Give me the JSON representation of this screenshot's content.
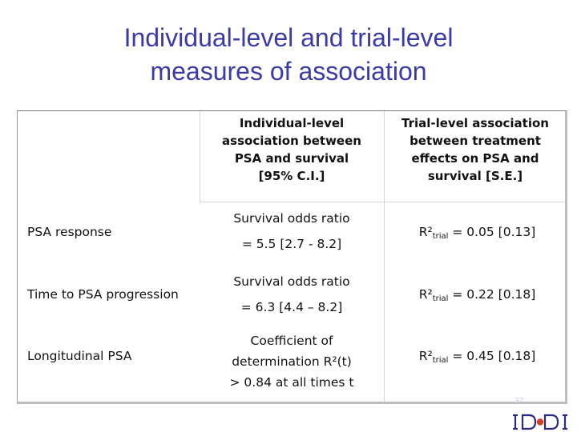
{
  "title": {
    "line1": "Individual-level and trial-level",
    "line2": "measures of association"
  },
  "table": {
    "headers": {
      "col1": [
        "Individual-level",
        "association between",
        "PSA and survival",
        "[95% C.I.]"
      ],
      "col2": [
        "Trial-level association",
        "between treatment",
        "effects on PSA and",
        "survival [S.E.]"
      ]
    },
    "rows": [
      {
        "label": "PSA response",
        "individual_l1": "Survival odds ratio",
        "individual_l2": "= 5.5 [2.7 - 8.2]",
        "r2_prefix": "R²",
        "r2_sub": "trial",
        "r2_value": " = 0.05 [0.13]"
      },
      {
        "label": "Time to PSA progression",
        "individual_l1": "Survival odds ratio",
        "individual_l2": "= 6.3 [4.4 – 8.2]",
        "r2_prefix": "R²",
        "r2_sub": "trial",
        "r2_value": " = 0.22 [0.18]"
      },
      {
        "label": "Longitudinal PSA",
        "individual_lines": [
          "Coefficient of",
          "determination R²(t)",
          "> 0.84 at all times t"
        ],
        "r2_prefix": "R²",
        "r2_sub": "trial",
        "r2_value": " = 0.45 [0.18]"
      }
    ]
  },
  "footer": {
    "page_number": "37",
    "logo_icon": "iddi-logo",
    "logo_colors": {
      "frame": "#2a2a80",
      "dot": "#d04020"
    }
  }
}
